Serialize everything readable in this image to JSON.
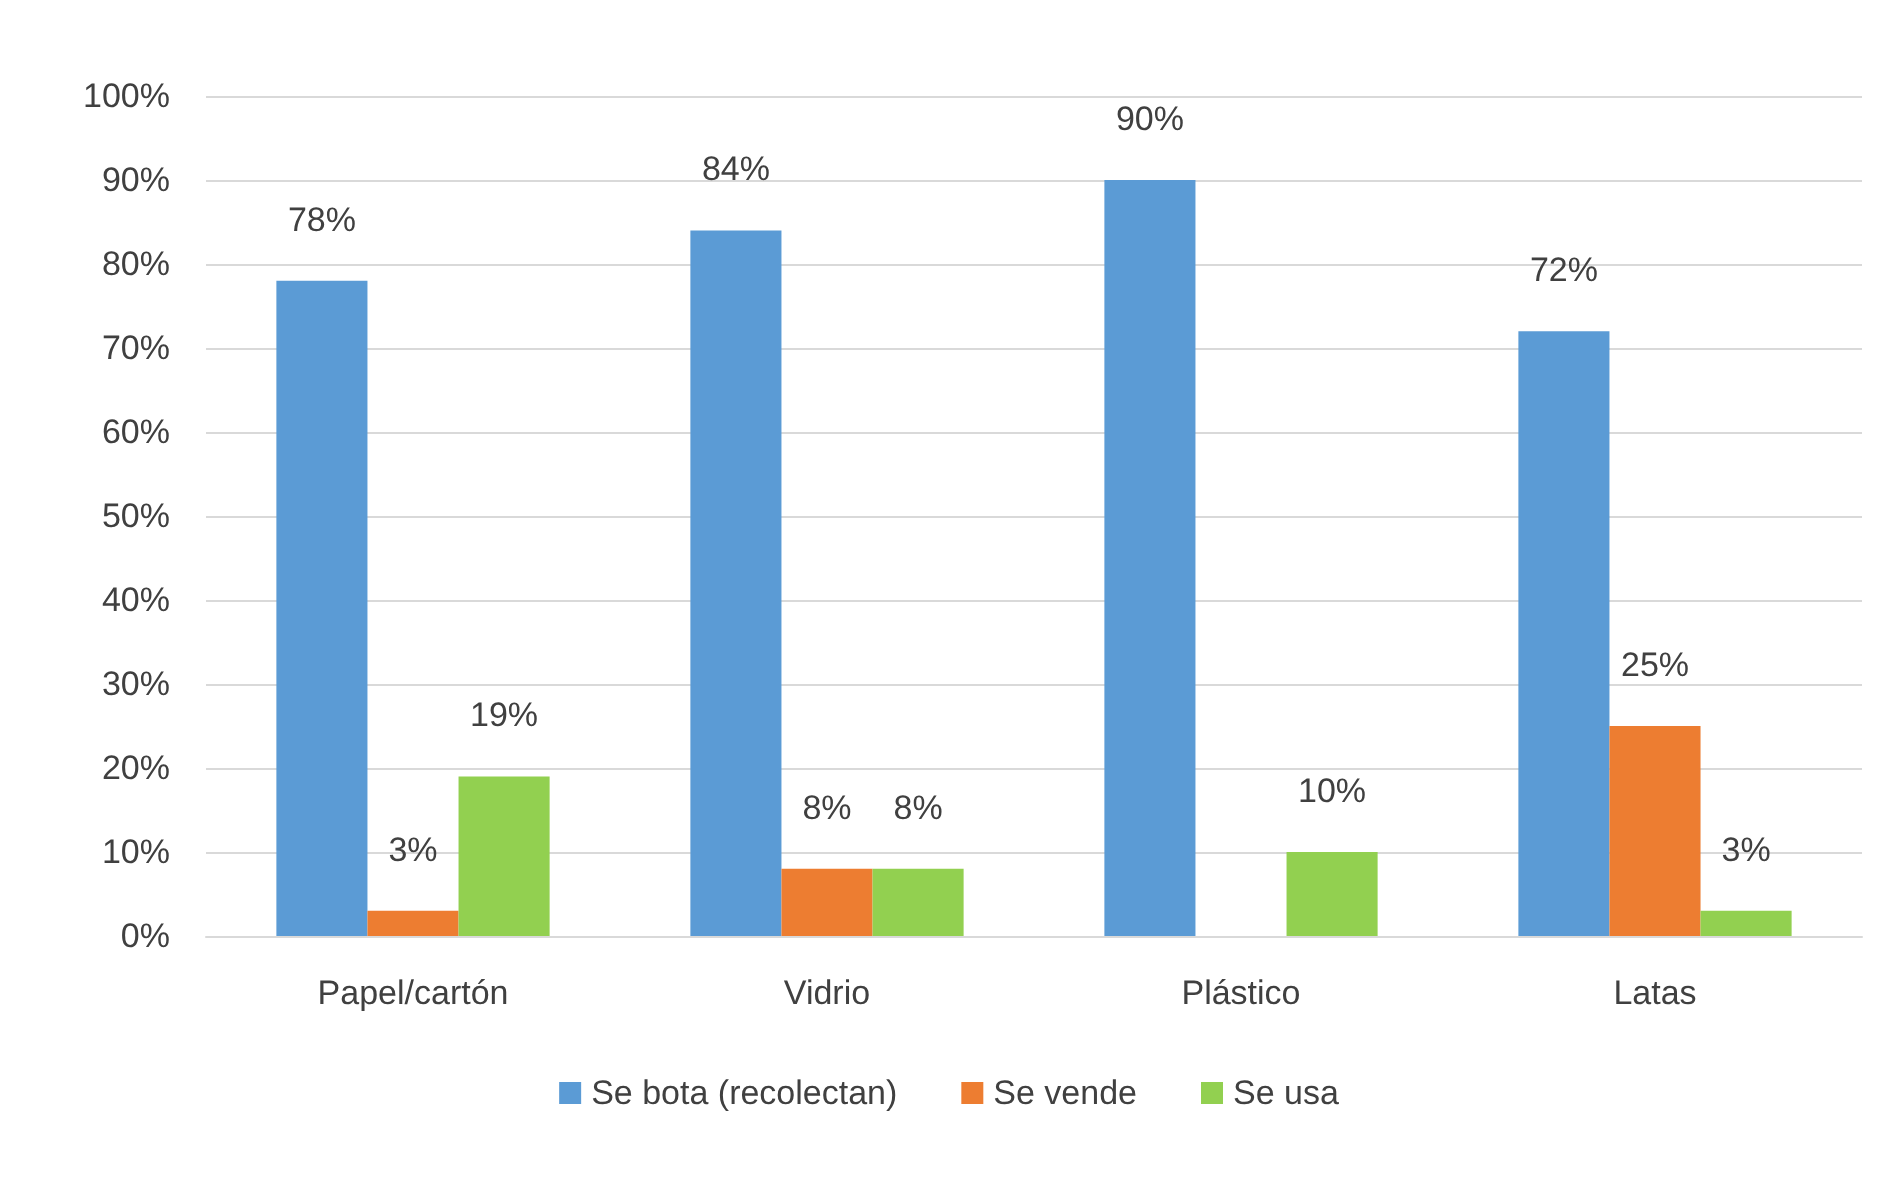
{
  "chart_data": {
    "type": "bar",
    "categories": [
      "Papel/cartón",
      "Vidrio",
      "Plástico",
      "Latas"
    ],
    "series": [
      {
        "name": "Se bota (recolectan)",
        "color": "#5b9bd5",
        "values": [
          78,
          84,
          90,
          72
        ],
        "value_labels": [
          "78%",
          "84%",
          "90%",
          "72%"
        ]
      },
      {
        "name": "Se vende",
        "color": "#ed7d31",
        "values": [
          3,
          8,
          null,
          25
        ],
        "value_labels": [
          "3%",
          "8%",
          null,
          "25%"
        ]
      },
      {
        "name": "Se usa",
        "color": "#92d050",
        "values": [
          19,
          8,
          10,
          3
        ],
        "value_labels": [
          "19%",
          "8%",
          "10%",
          "3%"
        ]
      }
    ],
    "ylim": [
      0,
      100
    ],
    "yticks": [
      {
        "value": 0,
        "label": "0%"
      },
      {
        "value": 10,
        "label": "10%"
      },
      {
        "value": 20,
        "label": "20%"
      },
      {
        "value": 30,
        "label": "30%"
      },
      {
        "value": 40,
        "label": "40%"
      },
      {
        "value": 50,
        "label": "50%"
      },
      {
        "value": 60,
        "label": "60%"
      },
      {
        "value": 70,
        "label": "70%"
      },
      {
        "value": 80,
        "label": "80%"
      },
      {
        "value": 90,
        "label": "90%"
      },
      {
        "value": 100,
        "label": "100%"
      }
    ],
    "grid": "y",
    "legend": "bottom"
  }
}
